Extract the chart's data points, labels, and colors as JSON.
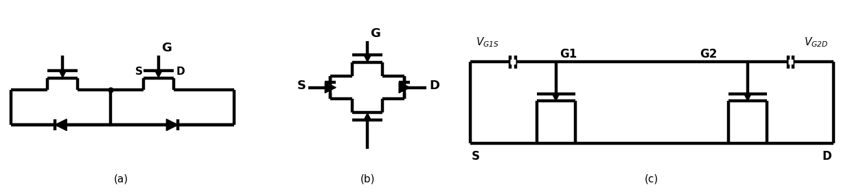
{
  "fig_width": 12.38,
  "fig_height": 2.8,
  "dpi": 100,
  "lw": 2.5,
  "label_a": "(a)",
  "label_b": "(b)",
  "label_c": "(c)",
  "bg_color": "#ffffff",
  "line_color": "#000000"
}
